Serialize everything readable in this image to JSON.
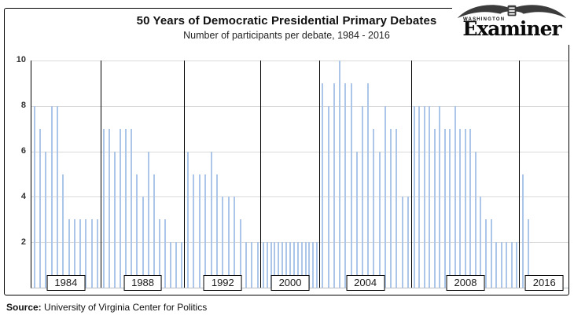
{
  "header": {
    "title": "50 Years of Democratic Presidential Primary Debates",
    "subtitle": "Number of participants per debate, 1984 - 2016"
  },
  "logo": {
    "region": "WASHINGTON",
    "name": "Examiner",
    "eagle_icon": "eagle-icon"
  },
  "source": {
    "label": "Source:",
    "text": " University of Virginia Center for Politics"
  },
  "colors": {
    "bar": "#abc6e9",
    "gridline": "#d9d9d9",
    "separator": "#000000",
    "frame_border": "#000000"
  },
  "chart_data": {
    "type": "bar",
    "title": "50 Years of Democratic Presidential Primary Debates",
    "subtitle": "Number of participants per debate, 1984 - 2016",
    "ylabel": "",
    "xlabel": "",
    "ylim": [
      0,
      10
    ],
    "yticks": [
      2,
      4,
      6,
      8,
      10
    ],
    "grid": true,
    "legend": false,
    "groups": [
      {
        "label": "1984",
        "width_pct": 13.0,
        "values": [
          8,
          7,
          6,
          8,
          8,
          5,
          3,
          3,
          3,
          3,
          3,
          3
        ]
      },
      {
        "label": "1988",
        "width_pct": 15.6,
        "values": [
          7,
          7,
          6,
          7,
          7,
          7,
          5,
          4,
          6,
          5,
          3,
          3,
          2,
          2,
          2
        ]
      },
      {
        "label": "1992",
        "width_pct": 14.2,
        "values": [
          6,
          5,
          5,
          5,
          6,
          5,
          4,
          4,
          4,
          3,
          2,
          2,
          2
        ]
      },
      {
        "label": "2000",
        "width_pct": 10.9,
        "values": [
          2,
          2,
          2,
          2,
          2,
          2,
          2,
          2,
          2,
          2,
          2,
          2,
          2,
          2,
          2
        ]
      },
      {
        "label": "2004",
        "width_pct": 17.1,
        "values": [
          9,
          8,
          9,
          10,
          9,
          9,
          6,
          8,
          9,
          7,
          6,
          8,
          7,
          7,
          4,
          4
        ]
      },
      {
        "label": "2008",
        "width_pct": 20.2,
        "values": [
          8,
          8,
          8,
          8,
          7,
          8,
          7,
          7,
          8,
          7,
          7,
          7,
          6,
          4,
          3,
          3,
          2,
          2,
          2,
          2,
          2
        ]
      },
      {
        "label": "2016",
        "width_pct": 9.0,
        "values": [
          5,
          3
        ],
        "slots": 9
      }
    ]
  }
}
